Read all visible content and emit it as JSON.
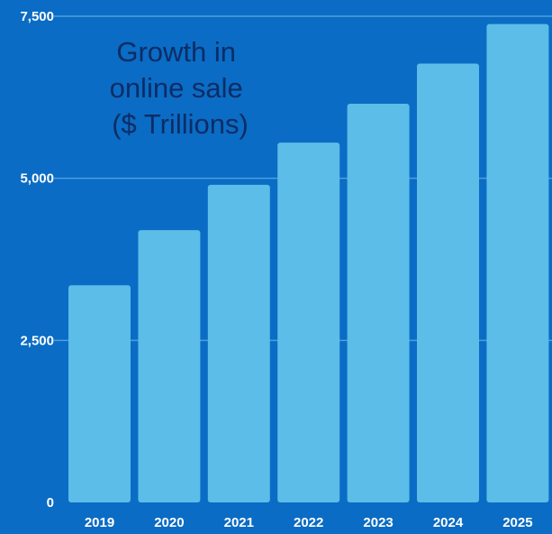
{
  "chart_data": {
    "type": "bar",
    "title_lines": [
      "Growth in",
      "online sale",
      "($ Trillions)"
    ],
    "categories": [
      "2019",
      "2020",
      "2021",
      "2022",
      "2023",
      "2024",
      "2025"
    ],
    "values": [
      3350,
      4200,
      4900,
      5550,
      6150,
      6770,
      7380
    ],
    "yticks": [
      "0",
      "2,500",
      "5,000",
      "7,500"
    ],
    "ytick_values": [
      0,
      2500,
      5000,
      7500
    ],
    "ylim": [
      0,
      7500
    ],
    "grid": true,
    "colors": {
      "background": "#0a6cc4",
      "bar": "#5bbde8",
      "grid": "#4e9ede",
      "title": "#0d2c66",
      "tick_text": "#ffffff"
    }
  }
}
